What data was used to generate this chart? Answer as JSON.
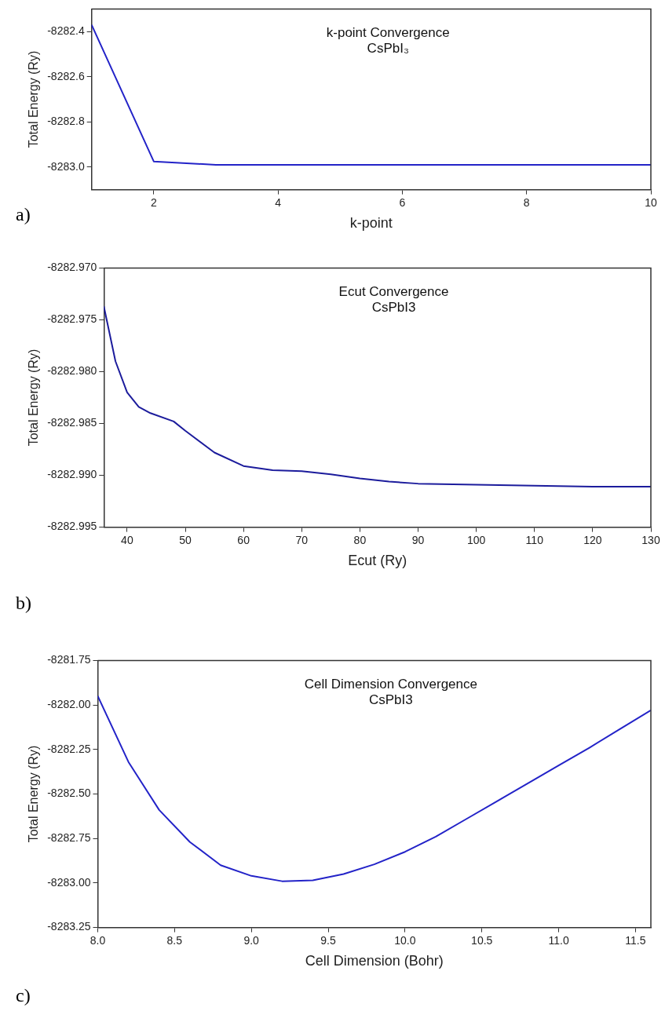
{
  "chart_data": [
    {
      "type": "line",
      "title": "k-point Convergence",
      "subtitle": "CsPbI₃",
      "xlabel": "k-point",
      "ylabel": "Total Energy (Ry)",
      "annotations": [
        "a)"
      ],
      "x": [
        1,
        2,
        3,
        4,
        5,
        6,
        7,
        8,
        9,
        10
      ],
      "series": [
        {
          "color": "#2323c8",
          "values": [
            -8282.37,
            -8282.975,
            -8282.99,
            -8282.99,
            -8282.99,
            -8282.99,
            -8282.99,
            -8282.99,
            -8282.99,
            -8282.99
          ]
        }
      ],
      "xlim": [
        1,
        10
      ],
      "xticks": [
        2,
        4,
        6,
        8,
        10
      ],
      "ylim": [
        -8283.1,
        -8282.3
      ],
      "yticks": [
        {
          "value": -8283.0,
          "label": "-8283.0"
        },
        -8282.8,
        -8282.6,
        -8282.4
      ],
      "grid": false,
      "legend": false,
      "marker": "none",
      "line_style": "solid"
    },
    {
      "type": "line",
      "title": "Ecut Convergence",
      "subtitle": "CsPbI3",
      "xlabel": "Ecut (Ry)",
      "ylabel": "Total Energy (Ry)",
      "annotations": [
        "b)"
      ],
      "x": [
        36,
        38,
        40,
        42,
        44,
        48,
        50,
        55,
        60,
        65,
        70,
        75,
        80,
        85,
        90,
        100,
        110,
        120,
        130
      ],
      "series": [
        {
          "color": "#1c1c9c",
          "values": [
            -8282.9737,
            -8282.979,
            -8282.982,
            -8282.9834,
            -8282.984,
            -8282.9848,
            -8282.9857,
            -8282.9878,
            -8282.9891,
            -8282.9895,
            -8282.9896,
            -8282.9899,
            -8282.9903,
            -8282.9906,
            -8282.9908,
            -8282.9909,
            -8282.991,
            -8282.9911,
            -8282.9911
          ]
        }
      ],
      "xlim": [
        36,
        130
      ],
      "xticks": [
        40,
        50,
        60,
        70,
        80,
        90,
        100,
        110,
        120,
        130
      ],
      "ylim": [
        -8282.995,
        -8282.97
      ],
      "yticks": [
        -8282.995,
        {
          "value": -8282.99,
          "label": "-8282.990"
        },
        -8282.985,
        {
          "value": -8282.98,
          "label": "-8282.980"
        },
        -8282.975,
        {
          "value": -8282.97,
          "label": "-8282.970"
        }
      ],
      "grid": false,
      "legend": false,
      "marker": "none",
      "line_style": "solid"
    },
    {
      "type": "line",
      "title": "Cell Dimension Convergence",
      "subtitle": "CsPbI3",
      "xlabel": "Cell Dimension (Bohr)",
      "ylabel": "Total Energy (Ry)",
      "annotations": [
        "c)"
      ],
      "x": [
        8.0,
        8.2,
        8.4,
        8.6,
        8.8,
        9.0,
        9.2,
        9.4,
        9.6,
        9.8,
        10.0,
        10.2,
        10.4,
        10.6,
        10.8,
        11.0,
        11.2,
        11.4,
        11.6
      ],
      "series": [
        {
          "color": "#2323c8",
          "values": [
            -8281.95,
            -8282.32,
            -8282.59,
            -8282.77,
            -8282.9,
            -8282.96,
            -8282.99,
            -8282.985,
            -8282.95,
            -8282.895,
            -8282.825,
            -8282.74,
            -8282.64,
            -8282.54,
            -8282.44,
            -8282.34,
            -8282.24,
            -8282.135,
            -8282.03
          ]
        }
      ],
      "xlim": [
        8.0,
        11.6
      ],
      "xticks": [
        {
          "value": 8.0,
          "label": "8.0"
        },
        8.5,
        {
          "value": 9.0,
          "label": "9.0"
        },
        9.5,
        {
          "value": 10.0,
          "label": "10.0"
        },
        10.5,
        {
          "value": 11.0,
          "label": "11.0"
        },
        11.5
      ],
      "ylim": [
        -8283.25,
        -8281.75
      ],
      "yticks": [
        -8283.25,
        {
          "value": -8283.0,
          "label": "-8283.00"
        },
        -8282.75,
        {
          "value": -8282.5,
          "label": "-8282.50"
        },
        -8282.25,
        {
          "value": -8282.0,
          "label": "-8282.00"
        },
        -8281.75
      ],
      "grid": false,
      "legend": false,
      "marker": "none",
      "line_style": "solid"
    }
  ]
}
